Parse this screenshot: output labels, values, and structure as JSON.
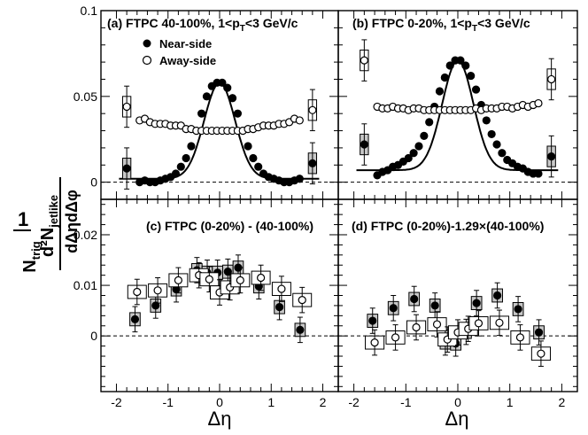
{
  "figure": {
    "ylabel_prefix": "1",
    "ylabel_top": "d²N",
    "ylabel_top_sub": "jetlike",
    "ylabel_top_den": "dΔηdΔφ",
    "ylabel_bot": "N",
    "ylabel_bot_sub": "trig",
    "xlabel": "Δη",
    "xticks": [
      "-2",
      "-1",
      "0",
      "1",
      "2"
    ],
    "colors": {
      "near": "#000000",
      "away": "#ffffff",
      "syst_near": "#c8c8c8",
      "syst_away": "#ffffff"
    }
  },
  "legend": {
    "near": "Near-side",
    "away": "Away-side"
  },
  "chart_data": [
    {
      "type": "scatter",
      "title": "(a) FTPC 40-100%, 1<p_T<3 GeV/c",
      "xlim": [
        -2.3,
        2.3
      ],
      "ylim": [
        -0.01,
        0.1
      ],
      "yticks": [
        0,
        0.05,
        0.1
      ],
      "ytick_labels": [
        "0",
        "0.05",
        "0.1"
      ],
      "legend": [
        "Near-side",
        "Away-side"
      ],
      "fit_near_level": 0.002,
      "series": [
        {
          "name": "Near-side",
          "x": [
            -1.8,
            -1.55,
            -1.45,
            -1.35,
            -1.25,
            -1.15,
            -1.05,
            -0.95,
            -0.85,
            -0.75,
            -0.65,
            -0.55,
            -0.45,
            -0.35,
            -0.25,
            -0.15,
            -0.05,
            0.05,
            0.15,
            0.25,
            0.35,
            0.45,
            0.55,
            0.65,
            0.75,
            0.85,
            0.95,
            1.05,
            1.15,
            1.25,
            1.35,
            1.45,
            1.55,
            1.8
          ],
          "y": [
            0.008,
            0.0,
            0.001,
            0.0,
            0.0,
            0.001,
            0.002,
            0.003,
            0.005,
            0.009,
            0.014,
            0.021,
            0.03,
            0.04,
            0.05,
            0.056,
            0.058,
            0.058,
            0.055,
            0.049,
            0.04,
            0.03,
            0.021,
            0.014,
            0.009,
            0.005,
            0.003,
            0.002,
            0.001,
            0.0,
            0.0,
            0.001,
            0.002,
            0.011
          ]
        },
        {
          "name": "Away-side",
          "x": [
            -1.8,
            -1.55,
            -1.45,
            -1.35,
            -1.25,
            -1.15,
            -1.05,
            -0.95,
            -0.85,
            -0.75,
            -0.65,
            -0.55,
            -0.45,
            -0.35,
            -0.25,
            -0.15,
            -0.05,
            0.05,
            0.15,
            0.25,
            0.35,
            0.45,
            0.55,
            0.65,
            0.75,
            0.85,
            0.95,
            1.05,
            1.15,
            1.25,
            1.35,
            1.45,
            1.55,
            1.8
          ],
          "y": [
            0.044,
            0.036,
            0.037,
            0.035,
            0.034,
            0.034,
            0.034,
            0.033,
            0.033,
            0.033,
            0.031,
            0.031,
            0.03,
            0.03,
            0.03,
            0.03,
            0.03,
            0.03,
            0.03,
            0.03,
            0.03,
            0.03,
            0.031,
            0.031,
            0.032,
            0.033,
            0.033,
            0.033,
            0.034,
            0.034,
            0.035,
            0.037,
            0.036,
            0.042
          ]
        }
      ]
    },
    {
      "type": "scatter",
      "title": "(b) FTPC 0-20%, 1<p_T<3 GeV/c",
      "xlim": [
        -2.3,
        2.3
      ],
      "ylim": [
        -0.01,
        0.1
      ],
      "yticks": [
        0,
        0.05,
        0.1
      ],
      "ytick_labels": [],
      "fit_near_level": 0.007,
      "series": [
        {
          "name": "Near-side",
          "x": [
            -1.8,
            -1.55,
            -1.45,
            -1.35,
            -1.25,
            -1.15,
            -1.05,
            -0.95,
            -0.85,
            -0.75,
            -0.65,
            -0.55,
            -0.45,
            -0.35,
            -0.25,
            -0.15,
            -0.05,
            0.05,
            0.15,
            0.25,
            0.35,
            0.45,
            0.55,
            0.65,
            0.75,
            0.85,
            0.95,
            1.05,
            1.15,
            1.25,
            1.35,
            1.45,
            1.55,
            1.8
          ],
          "y": [
            0.022,
            0.004,
            0.006,
            0.007,
            0.009,
            0.01,
            0.012,
            0.014,
            0.017,
            0.021,
            0.027,
            0.035,
            0.044,
            0.053,
            0.061,
            0.068,
            0.071,
            0.071,
            0.068,
            0.062,
            0.054,
            0.045,
            0.036,
            0.028,
            0.022,
            0.017,
            0.013,
            0.011,
            0.009,
            0.008,
            0.006,
            0.005,
            0.005,
            0.015
          ]
        },
        {
          "name": "Away-side",
          "x": [
            -1.8,
            -1.55,
            -1.45,
            -1.35,
            -1.25,
            -1.15,
            -1.05,
            -0.95,
            -0.85,
            -0.75,
            -0.65,
            -0.55,
            -0.45,
            -0.35,
            -0.25,
            -0.15,
            -0.05,
            0.05,
            0.15,
            0.25,
            0.35,
            0.45,
            0.55,
            0.65,
            0.75,
            0.85,
            0.95,
            1.05,
            1.15,
            1.25,
            1.35,
            1.45,
            1.55,
            1.8
          ],
          "y": [
            0.071,
            0.044,
            0.043,
            0.043,
            0.044,
            0.043,
            0.043,
            0.042,
            0.043,
            0.043,
            0.042,
            0.042,
            0.042,
            0.042,
            0.042,
            0.042,
            0.042,
            0.042,
            0.042,
            0.042,
            0.043,
            0.042,
            0.043,
            0.043,
            0.043,
            0.044,
            0.044,
            0.043,
            0.044,
            0.045,
            0.044,
            0.045,
            0.046,
            0.06
          ]
        }
      ]
    },
    {
      "type": "scatter",
      "title": "(c) FTPC (0-20%) - (40-100%)",
      "xlim": [
        -2.3,
        2.3
      ],
      "ylim": [
        -0.011,
        0.027
      ],
      "yticks": [
        0,
        0.01,
        0.02
      ],
      "ytick_labels": [
        "0",
        "0.01",
        "0.02"
      ],
      "series": [
        {
          "name": "Near-side",
          "x": [
            -1.6,
            -1.2,
            -0.8,
            -0.4,
            -0.2,
            0.0,
            0.2,
            0.4,
            0.8,
            1.2,
            1.6
          ],
          "y": [
            0.0033,
            0.006,
            0.0092,
            0.013,
            0.0125,
            0.0125,
            0.0127,
            0.0135,
            0.0098,
            0.0057,
            0.0012
          ]
        },
        {
          "name": "Away-side",
          "x": [
            -1.6,
            -1.2,
            -0.8,
            -0.4,
            -0.2,
            0.0,
            0.2,
            0.4,
            0.8,
            1.2,
            1.6
          ],
          "y": [
            0.0087,
            0.009,
            0.011,
            0.012,
            0.0112,
            0.0086,
            0.0096,
            0.011,
            0.0115,
            0.0093,
            0.0071
          ]
        }
      ]
    },
    {
      "type": "scatter",
      "title": "(d) FTPC (0-20%)-1.29×(40-100%)",
      "xlim": [
        -2.3,
        2.3
      ],
      "ylim": [
        -0.011,
        0.027
      ],
      "yticks": [
        0,
        0.01,
        0.02
      ],
      "ytick_labels": [],
      "series": [
        {
          "name": "Near-side",
          "x": [
            -1.6,
            -1.2,
            -0.8,
            -0.4,
            -0.2,
            0.0,
            0.2,
            0.4,
            0.8,
            1.2,
            1.6
          ],
          "y": [
            0.003,
            0.0055,
            0.0073,
            0.006,
            -0.0013,
            -0.0015,
            0.0008,
            0.0065,
            0.008,
            0.0053,
            0.0007
          ]
        },
        {
          "name": "Away-side",
          "x": [
            -1.6,
            -1.2,
            -0.8,
            -0.4,
            -0.2,
            0.0,
            0.2,
            0.4,
            0.8,
            1.2,
            1.6
          ],
          "y": [
            -0.0013,
            -0.0003,
            0.0017,
            0.0023,
            -0.0007,
            0.0007,
            0.0014,
            0.0025,
            0.0026,
            -0.0003,
            -0.0035
          ]
        }
      ]
    }
  ]
}
